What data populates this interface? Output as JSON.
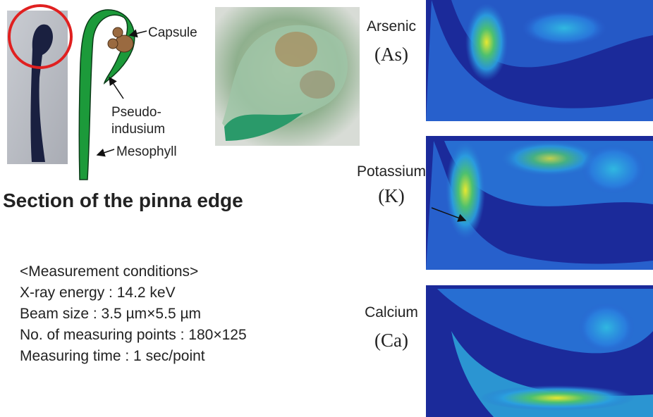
{
  "diagram": {
    "labels": {
      "capsule": "Capsule",
      "pseudo_indusium": [
        "Pseudo-",
        "indusium"
      ],
      "mesophyll": "Mesophyll"
    },
    "section_title": "Section of the pinna edge",
    "conditions": [
      "<Measurement conditions>",
      "X-ray energy : 14.2 keV",
      "Beam size : 3.5 µm×5.5 µm",
      "No. of measuring points : 180×125",
      "Measuring time : 1 sec/point"
    ],
    "maps": [
      {
        "element": "Arsenic",
        "symbol": "(As)"
      },
      {
        "element": "Potassium",
        "symbol": "(K)"
      },
      {
        "element": "Calcium",
        "symbol": "(Ca)"
      }
    ]
  }
}
